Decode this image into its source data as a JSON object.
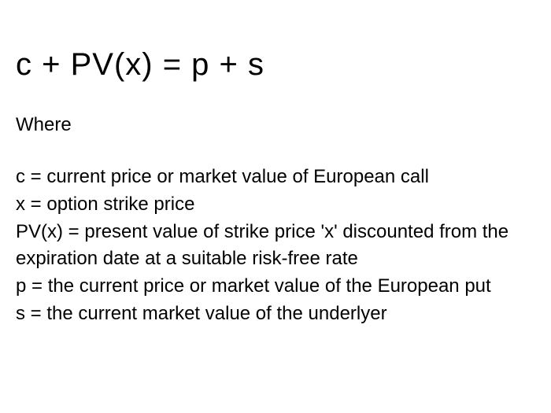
{
  "formula": {
    "expression": "c + PV(x) = p + s",
    "fontsize": 40,
    "color": "#000000"
  },
  "where_label": "Where",
  "definitions": [
    "c = current price or market value of European call",
    "x = option strike price",
    "PV(x) = present value of strike price 'x' discounted from the expiration date at a suitable risk-free rate",
    "p = the current price or market value of the European put",
    "s = the current market value of the underlyer"
  ],
  "styling": {
    "background_color": "#ffffff",
    "text_color": "#000000",
    "body_fontsize": 24,
    "formula_fontsize": 40,
    "font_family": "Arial, Helvetica, sans-serif"
  }
}
